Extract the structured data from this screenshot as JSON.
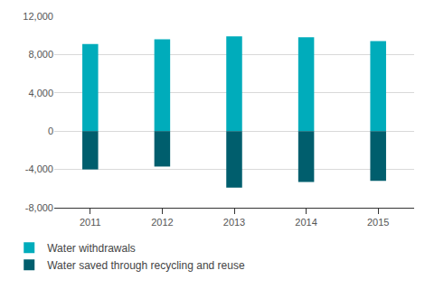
{
  "chart_data": {
    "type": "bar",
    "categories": [
      "2011",
      "2012",
      "2013",
      "2014",
      "2015"
    ],
    "series": [
      {
        "name": "Water withdrawals",
        "color": "#00acbb",
        "values": [
          9100,
          9600,
          9900,
          9800,
          9400
        ]
      },
      {
        "name": "Water saved through recycling and reuse",
        "color": "#005e6d",
        "values": [
          -4000,
          -3700,
          -5900,
          -5300,
          -5200
        ]
      }
    ],
    "stacked": true,
    "ylim": [
      -8000,
      12000
    ],
    "yticks": [
      {
        "value": -8000,
        "label": "-8,000"
      },
      {
        "value": -4000,
        "label": "-4,000"
      },
      0,
      {
        "value": 4000,
        "label": "4,000"
      },
      {
        "value": 8000,
        "label": "8,000"
      },
      {
        "value": 12000,
        "label": "12,000"
      }
    ],
    "grid": true,
    "legend": "bottom"
  }
}
